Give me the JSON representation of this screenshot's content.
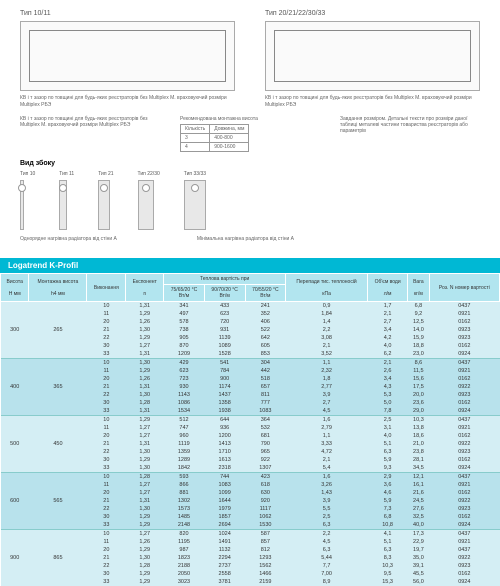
{
  "diagrams": {
    "left_title": "Тип 10/11",
    "right_title": "Тип 20/21/22/30/33",
    "note_a": "КВ і т зазор по товщині для будь-яких реєстраторів без Multiplex М. враховуючий розміри Multiplex РБЭ",
    "note_b": "Рекомендована монтажна висота",
    "note_c": "КВ і т зазор по товщині для будь-яких реєстраторів без Multiplex М. враховуючий розміри Multiplex РБЭ",
    "note_d": "Завдання розміром. Детальні тексти про розміри даної таблиці металеві частини товариства реєстраторів або параметрів",
    "mini": [
      [
        "Кількість",
        "Довжина, мм"
      ],
      [
        "3",
        "400-800"
      ],
      [
        "4",
        "900-1600"
      ]
    ]
  },
  "side": {
    "title": "Вид збоку",
    "items": [
      {
        "label": "Тип 10",
        "w": 4
      },
      {
        "label": "Тип 11",
        "w": 8
      },
      {
        "label": "Тип 21",
        "w": 12
      },
      {
        "label": "Тип 22/30",
        "w": 16
      },
      {
        "label": "Тип 33/33",
        "w": 22
      }
    ],
    "caption_left": "Однорядне нагрівна радіатора від стіни А",
    "caption_right": "Мінімальна нагрівна радіатора від стіни А"
  },
  "product": "Logatrend K-Profil",
  "headers": {
    "h1": "Висота",
    "h1s": "H мм",
    "h2": "Монтажна висота",
    "h2s": "h4 мм",
    "h3": "Виконання",
    "h4": "Експонент",
    "h5": "Теплова вартість при",
    "h5a": "75/65/20 °C",
    "h5b": "90/70/20 °C",
    "h5c": "70/55/20 °C",
    "h6": "Перепади тис. теплоносій",
    "h7": "Об'єм води",
    "h8": "Вага",
    "h9": "Роз. N номер вартості",
    "u_n": "n",
    "u_w": "Вт/м",
    "u_p": "кПа",
    "u_v": "л/м",
    "u_m": "кг/м"
  },
  "groups": [
    {
      "H": "300",
      "h4": "265",
      "rows": [
        [
          "10",
          "1,31",
          "341",
          "433",
          "241",
          "0,9",
          "1,7",
          "6,8",
          "0437"
        ],
        [
          "11",
          "1,29",
          "497",
          "623",
          "352",
          "1,84",
          "2,1",
          "9,2",
          "0921"
        ],
        [
          "20",
          "1,26",
          "578",
          "720",
          "406",
          "1,4",
          "2,7",
          "12,5",
          "0162"
        ],
        [
          "21",
          "1,30",
          "738",
          "931",
          "522",
          "2,2",
          "3,4",
          "14,0",
          "0923"
        ],
        [
          "22",
          "1,29",
          "905",
          "1139",
          "642",
          "3,08",
          "4,2",
          "15,9",
          "0923"
        ],
        [
          "30",
          "1,27",
          "870",
          "1089",
          "605",
          "2,1",
          "4,0",
          "18,8",
          "0162"
        ],
        [
          "33",
          "1,31",
          "1209",
          "1528",
          "853",
          "3,52",
          "6,2",
          "23,0",
          "0924"
        ]
      ]
    },
    {
      "H": "400",
      "h4": "365",
      "rows": [
        [
          "10",
          "1,30",
          "429",
          "541",
          "304",
          "1,1",
          "2,1",
          "8,6",
          "0437"
        ],
        [
          "11",
          "1,29",
          "623",
          "784",
          "442",
          "2,32",
          "2,6",
          "11,5",
          "0921"
        ],
        [
          "20",
          "1,26",
          "723",
          "900",
          "518",
          "1,8",
          "3,4",
          "15,6",
          "0162"
        ],
        [
          "21",
          "1,31",
          "930",
          "1174",
          "657",
          "2,77",
          "4,3",
          "17,5",
          "0922"
        ],
        [
          "22",
          "1,30",
          "1143",
          "1437",
          "811",
          "3,9",
          "5,3",
          "20,0",
          "0923"
        ],
        [
          "30",
          "1,28",
          "1086",
          "1358",
          "777",
          "2,7",
          "5,0",
          "23,6",
          "0162"
        ],
        [
          "33",
          "1,31",
          "1534",
          "1938",
          "1083",
          "4,5",
          "7,8",
          "29,0",
          "0924"
        ]
      ]
    },
    {
      "H": "500",
      "h4": "450",
      "rows": [
        [
          "10",
          "1,29",
          "512",
          "644",
          "364",
          "1,6",
          "2,5",
          "10,3",
          "0437"
        ],
        [
          "11",
          "1,27",
          "747",
          "936",
          "532",
          "2,79",
          "3,1",
          "13,8",
          "0921"
        ],
        [
          "20",
          "1,27",
          "960",
          "1200",
          "681",
          "1,1",
          "4,0",
          "18,6",
          "0162"
        ],
        [
          "21",
          "1,31",
          "1119",
          "1413",
          "790",
          "3,33",
          "5,1",
          "21,0",
          "0922"
        ],
        [
          "22",
          "1,30",
          "1359",
          "1710",
          "965",
          "4,72",
          "6,3",
          "23,8",
          "0923"
        ],
        [
          "30",
          "1,29",
          "1289",
          "1613",
          "922",
          "2,1",
          "5,9",
          "28,1",
          "0162"
        ],
        [
          "33",
          "1,30",
          "1842",
          "2318",
          "1307",
          "5,4",
          "9,3",
          "34,5",
          "0924"
        ]
      ]
    },
    {
      "H": "600",
      "h4": "565",
      "rows": [
        [
          "10",
          "1,28",
          "593",
          "744",
          "423",
          "1,6",
          "2,9",
          "12,1",
          "0437"
        ],
        [
          "11",
          "1,27",
          "866",
          "1083",
          "618",
          "3,26",
          "3,6",
          "16,1",
          "0921"
        ],
        [
          "20",
          "1,27",
          "881",
          "1099",
          "630",
          "1,43",
          "4,6",
          "21,6",
          "0162"
        ],
        [
          "21",
          "1,31",
          "1302",
          "1644",
          "920",
          "3,9",
          "5,9",
          "24,5",
          "0922"
        ],
        [
          "22",
          "1,30",
          "1573",
          "1979",
          "1117",
          "5,5",
          "7,3",
          "27,6",
          "0923"
        ],
        [
          "30",
          "1,29",
          "1485",
          "1857",
          "1062",
          "2,5",
          "6,8",
          "32,5",
          "0162"
        ],
        [
          "33",
          "1,29",
          "2148",
          "2694",
          "1530",
          "6,3",
          "10,8",
          "40,0",
          "0924"
        ]
      ]
    },
    {
      "H": "900",
      "h4": "865",
      "rows": [
        [
          "10",
          "1,27",
          "820",
          "1024",
          "587",
          "2,2",
          "4,1",
          "17,3",
          "0437"
        ],
        [
          "11",
          "1,26",
          "1195",
          "1491",
          "857",
          "4,5",
          "5,1",
          "22,9",
          "0921"
        ],
        [
          "20",
          "1,29",
          "987",
          "1132",
          "812",
          "6,3",
          "6,3",
          "19,7",
          "0437"
        ],
        [
          "21",
          "1,30",
          "1823",
          "2294",
          "1293",
          "5,44",
          "8,3",
          "35,0",
          "0922"
        ],
        [
          "22",
          "1,28",
          "2188",
          "2737",
          "1562",
          "7,7",
          "10,3",
          "39,1",
          "0923"
        ],
        [
          "30",
          "1,29",
          "2050",
          "2558",
          "1466",
          "7,00",
          "9,5",
          "45,5",
          "0162"
        ],
        [
          "33",
          "1,29",
          "3023",
          "3781",
          "2159",
          "8,9",
          "15,3",
          "56,0",
          "0924"
        ]
      ]
    }
  ]
}
